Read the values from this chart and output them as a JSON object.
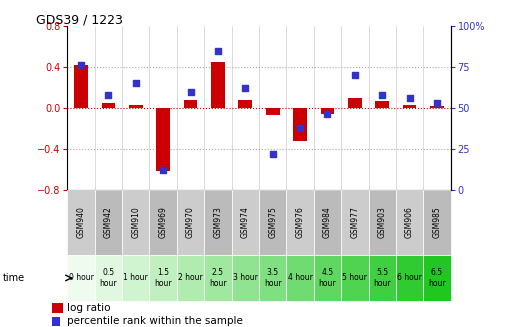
{
  "title": "GDS39 / 1223",
  "samples": [
    "GSM940",
    "GSM942",
    "GSM910",
    "GSM969",
    "GSM970",
    "GSM973",
    "GSM974",
    "GSM975",
    "GSM976",
    "GSM984",
    "GSM977",
    "GSM903",
    "GSM906",
    "GSM985"
  ],
  "time_labels": [
    "0 hour",
    "0.5\nhour",
    "1 hour",
    "1.5\nhour",
    "2 hour",
    "2.5\nhour",
    "3 hour",
    "3.5\nhour",
    "4 hour",
    "4.5\nhour",
    "5 hour",
    "5.5\nhour",
    "6 hour",
    "6.5\nhour"
  ],
  "log_ratio": [
    0.42,
    0.05,
    0.03,
    -0.62,
    0.08,
    0.45,
    0.08,
    -0.07,
    -0.32,
    -0.06,
    0.1,
    0.07,
    0.03,
    0.02
  ],
  "percentile": [
    76,
    58,
    65,
    12,
    60,
    85,
    62,
    22,
    38,
    46,
    70,
    58,
    56,
    53
  ],
  "ylim_left": [
    -0.8,
    0.8
  ],
  "ylim_right": [
    0,
    100
  ],
  "yticks_left": [
    -0.8,
    -0.4,
    0.0,
    0.4,
    0.8
  ],
  "yticks_right": [
    0,
    25,
    50,
    75,
    100
  ],
  "bar_color": "#cc0000",
  "dot_color": "#3333cc",
  "bg_color": "#ffffff",
  "dotted_line_color": "#aaaaaa",
  "zero_line_color": "#cc0000",
  "gsm_colors": [
    "#cccccc",
    "#bbbbbb",
    "#cccccc",
    "#bbbbbb",
    "#cccccc",
    "#bbbbbb",
    "#cccccc",
    "#bbbbbb",
    "#cccccc",
    "#bbbbbb",
    "#cccccc",
    "#bbbbbb",
    "#cccccc",
    "#bbbbbb"
  ],
  "time_colors": [
    "#eafaea",
    "#d4f0d4",
    "#bfebb f",
    "#a8e6a8",
    "#92e192",
    "#7bdc7b",
    "#65d765",
    "#4ed24e",
    "#38cd38",
    "#22c822",
    "#0fc30f",
    "#09be09",
    "#06b906",
    "#03b403"
  ]
}
